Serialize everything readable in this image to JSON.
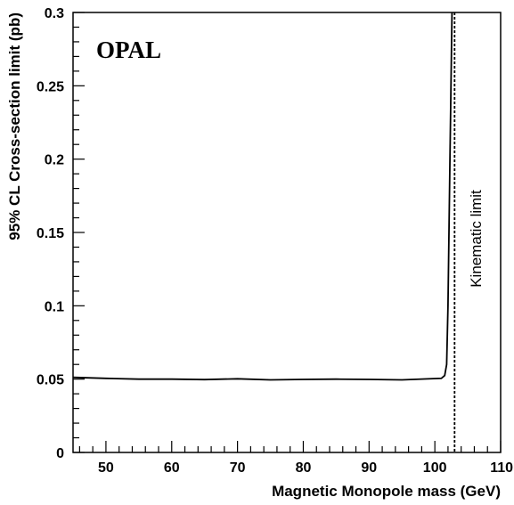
{
  "chart_data": {
    "type": "line",
    "title": "",
    "logo_text": "OPAL",
    "xlabel": "Magnetic Monopole mass (GeV)",
    "ylabel": "95% CL Cross-section limit (pb)",
    "xlim": [
      45,
      110
    ],
    "ylim": [
      0,
      0.3
    ],
    "x_ticks": [
      50,
      60,
      70,
      80,
      90,
      100,
      110
    ],
    "x_tick_labels": [
      "50",
      "60",
      "70",
      "80",
      "90",
      "100",
      "110"
    ],
    "y_ticks": [
      0,
      0.05,
      0.1,
      0.15,
      0.2,
      0.25,
      0.3
    ],
    "y_tick_labels": [
      "0",
      "0.05",
      "0.1",
      "0.15",
      "0.2",
      "0.25",
      "0.3"
    ],
    "grid": false,
    "series": [
      {
        "style": "solid",
        "x": [
          45,
          50,
          55,
          60,
          65,
          70,
          75,
          80,
          85,
          90,
          95,
          101,
          101.5,
          101.8,
          102,
          102.3,
          102.6
        ],
        "y": [
          0.0512,
          0.0505,
          0.05,
          0.05,
          0.0497,
          0.0502,
          0.0495,
          0.0498,
          0.05,
          0.0498,
          0.0495,
          0.0505,
          0.0525,
          0.06,
          0.1,
          0.2,
          0.3
        ]
      }
    ],
    "kinematic_limit": {
      "x": 103,
      "style": "dotted",
      "label": "Kinematic limit"
    }
  }
}
